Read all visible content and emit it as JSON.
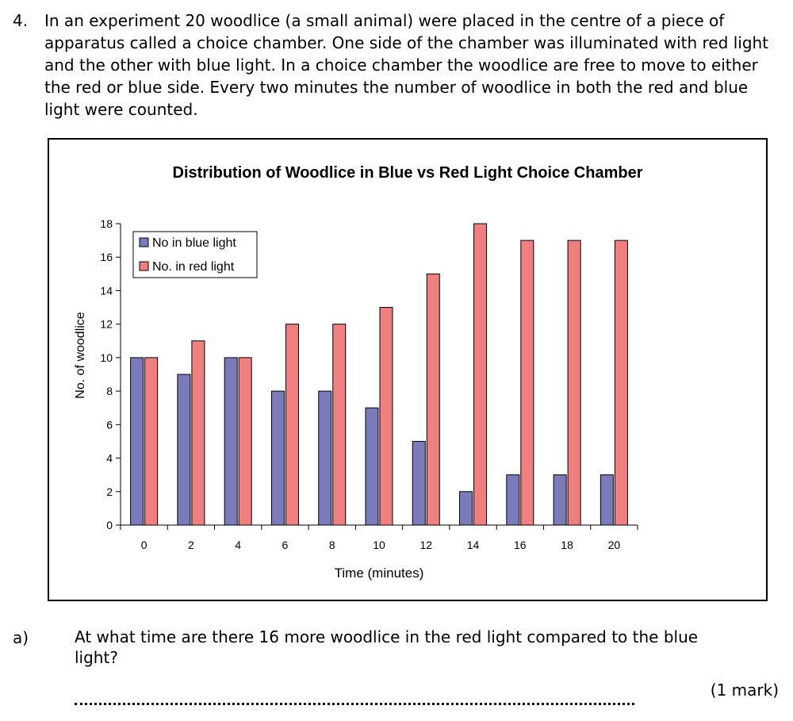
{
  "question": {
    "number": "4.",
    "text": "In an experiment 20 woodlice (a small animal) were placed in the centre of a piece of apparatus called a choice chamber.  One side of the chamber was illuminated with red light and the other with blue light.  In a choice chamber the woodlice are free to move to either the red or blue side.  Every two minutes the number of woodlice in both the red and blue light were counted."
  },
  "chart_data": {
    "type": "bar",
    "title": "Distribution of Woodlice in Blue vs Red Light Choice Chamber",
    "xlabel": "Time (minutes)",
    "ylabel": "No. of woodlice",
    "categories": [
      "0",
      "2",
      "4",
      "6",
      "8",
      "10",
      "12",
      "14",
      "16",
      "18",
      "20"
    ],
    "series": [
      {
        "name": "No in blue light",
        "color": "#7b7bbb",
        "values": [
          10,
          9,
          10,
          8,
          8,
          7,
          5,
          2,
          3,
          3,
          3
        ]
      },
      {
        "name": "No. in red light",
        "color": "#f08080",
        "values": [
          10,
          11,
          10,
          12,
          12,
          13,
          15,
          18,
          17,
          17,
          17
        ]
      }
    ],
    "ylim": [
      0,
      18
    ],
    "yticks": [
      0,
      2,
      4,
      6,
      8,
      10,
      12,
      14,
      16,
      18
    ],
    "grid": false,
    "legend": "top-left"
  },
  "part_a": {
    "label": "a)",
    "text": "At what time are there 16 more woodlice in the red light compared to the blue light?",
    "marks": "(1 mark)"
  }
}
